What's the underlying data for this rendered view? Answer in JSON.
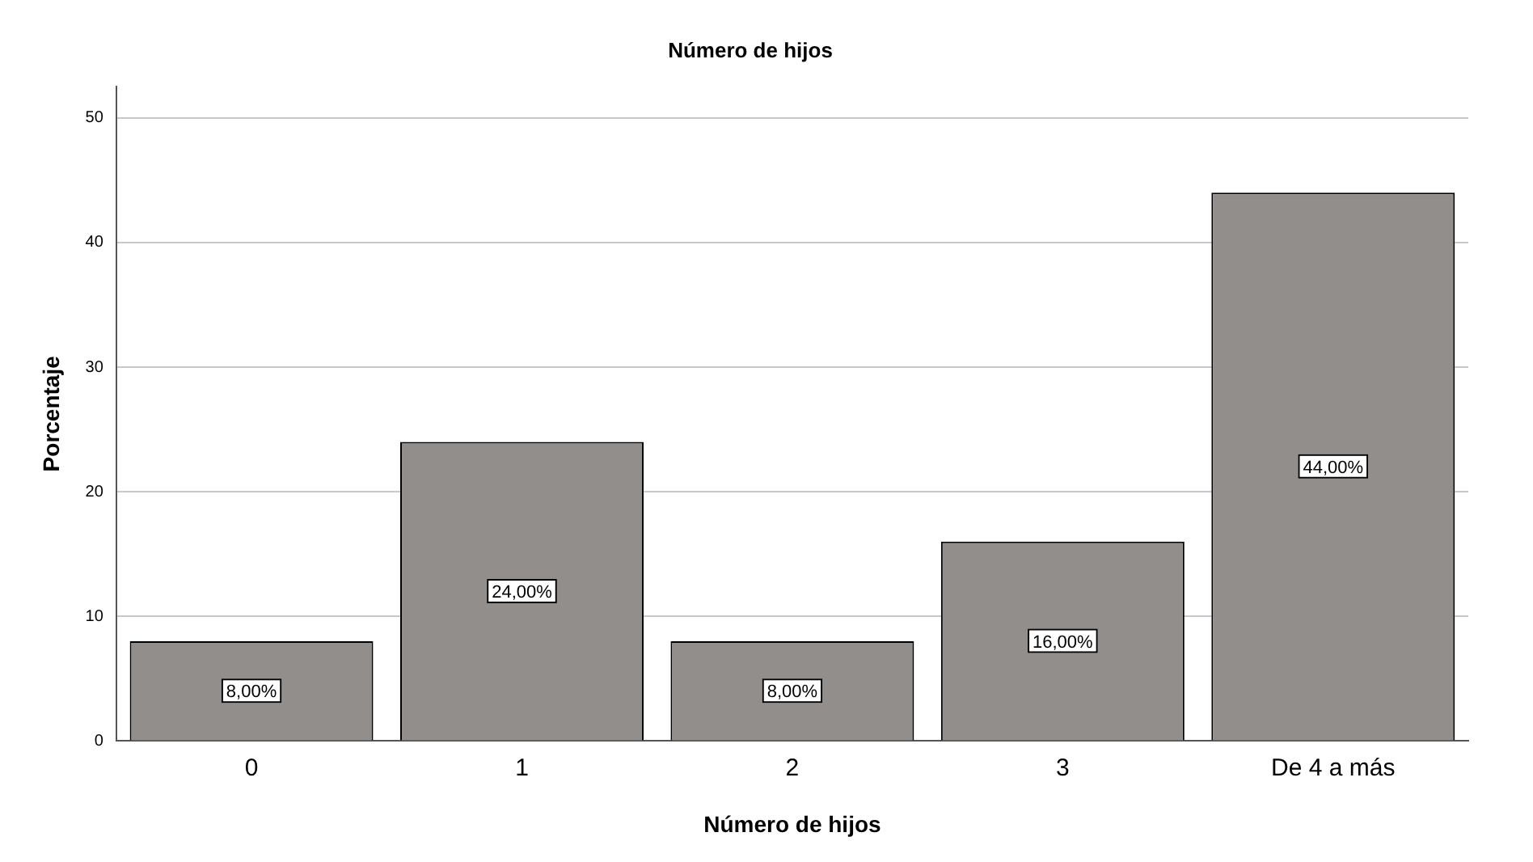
{
  "chart_data": {
    "type": "bar",
    "title": "Número de hijos",
    "xlabel": "Número de hijos",
    "ylabel": "Porcentaje",
    "categories": [
      "0",
      "1",
      "2",
      "3",
      "De 4 a más"
    ],
    "values": [
      8,
      24,
      8,
      16,
      44
    ],
    "color": "#928e8c",
    "value_labels": [
      "8,00%",
      "24,00%",
      "8,00%",
      "16,00%",
      "44,00%"
    ],
    "ylim": [
      0,
      52.5
    ],
    "yticks": [
      0,
      10,
      20,
      30,
      40,
      50
    ],
    "grid": "y",
    "legend": false
  }
}
